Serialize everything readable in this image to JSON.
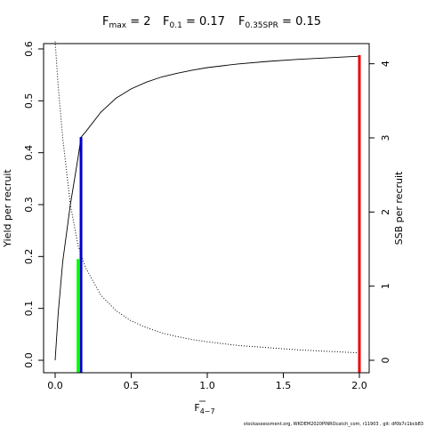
{
  "chart_data": {
    "type": "line",
    "title_parts": [
      {
        "base": "F",
        "sub": "max",
        "value": "= 2"
      },
      {
        "base": "F",
        "sub": "0.1",
        "value": "= 0.17"
      },
      {
        "base": "F",
        "sub": "0.35SPR",
        "value": "= 0.15"
      }
    ],
    "xlabel": {
      "base": "F",
      "sub": "4−7"
    },
    "ylabel_left": "Yield per recruit",
    "ylabel_right": "SSB per recruit",
    "xlim": [
      0,
      2
    ],
    "ylim_left": [
      0,
      0.6
    ],
    "ylim_right": [
      0,
      4.2
    ],
    "x_ticks": [
      0,
      0.5,
      1.0,
      1.5,
      2.0
    ],
    "x_tick_labels": [
      "0.0",
      "0.5",
      "1.0",
      "1.5",
      "2.0"
    ],
    "y_left_ticks": [
      0,
      0.1,
      0.2,
      0.3,
      0.4,
      0.5,
      0.6
    ],
    "y_left_tick_labels": [
      "0.0",
      "0.1",
      "0.2",
      "0.3",
      "0.4",
      "0.5",
      "0.6"
    ],
    "y_right_ticks": [
      0,
      1,
      2,
      3,
      4
    ],
    "y_right_tick_labels": [
      "0",
      "1",
      "2",
      "3",
      "4"
    ],
    "series": [
      {
        "axis": "left",
        "style": "solid",
        "color": "#000000",
        "x": [
          0,
          0.02,
          0.05,
          0.1,
          0.15,
          0.17,
          0.2,
          0.3,
          0.4,
          0.5,
          0.6,
          0.7,
          0.8,
          0.9,
          1.0,
          1.2,
          1.4,
          1.6,
          1.8,
          2.0
        ],
        "y": [
          0.0,
          0.09,
          0.19,
          0.3,
          0.39,
          0.43,
          0.44,
          0.478,
          0.505,
          0.523,
          0.536,
          0.546,
          0.553,
          0.559,
          0.564,
          0.571,
          0.576,
          0.58,
          0.583,
          0.586
        ]
      },
      {
        "axis": "right",
        "style": "dotted",
        "color": "#000000",
        "x": [
          0,
          0.02,
          0.05,
          0.1,
          0.15,
          0.2,
          0.3,
          0.4,
          0.5,
          0.6,
          0.7,
          0.8,
          0.9,
          1.0,
          1.2,
          1.4,
          1.6,
          1.8,
          2.0
        ],
        "y": [
          4.3,
          3.7,
          3.0,
          2.1,
          1.55,
          1.25,
          0.88,
          0.67,
          0.53,
          0.44,
          0.37,
          0.32,
          0.28,
          0.25,
          0.2,
          0.17,
          0.14,
          0.12,
          0.1
        ]
      }
    ],
    "reference_lines": [
      {
        "name": "F0.35SPR",
        "x": 0.15,
        "y_top": 0.195,
        "color": "#00ff00"
      },
      {
        "name": "F0.1",
        "x": 0.17,
        "y_top": 0.43,
        "color": "#0000cc"
      },
      {
        "name": "Fmax",
        "x": 2.0,
        "y_top": 0.588,
        "color": "#ee0000"
      }
    ],
    "footer": "stockassessment.org, WKDEM2020PINROcatch_com, r11903 , git: df0b7c1bcb83"
  }
}
